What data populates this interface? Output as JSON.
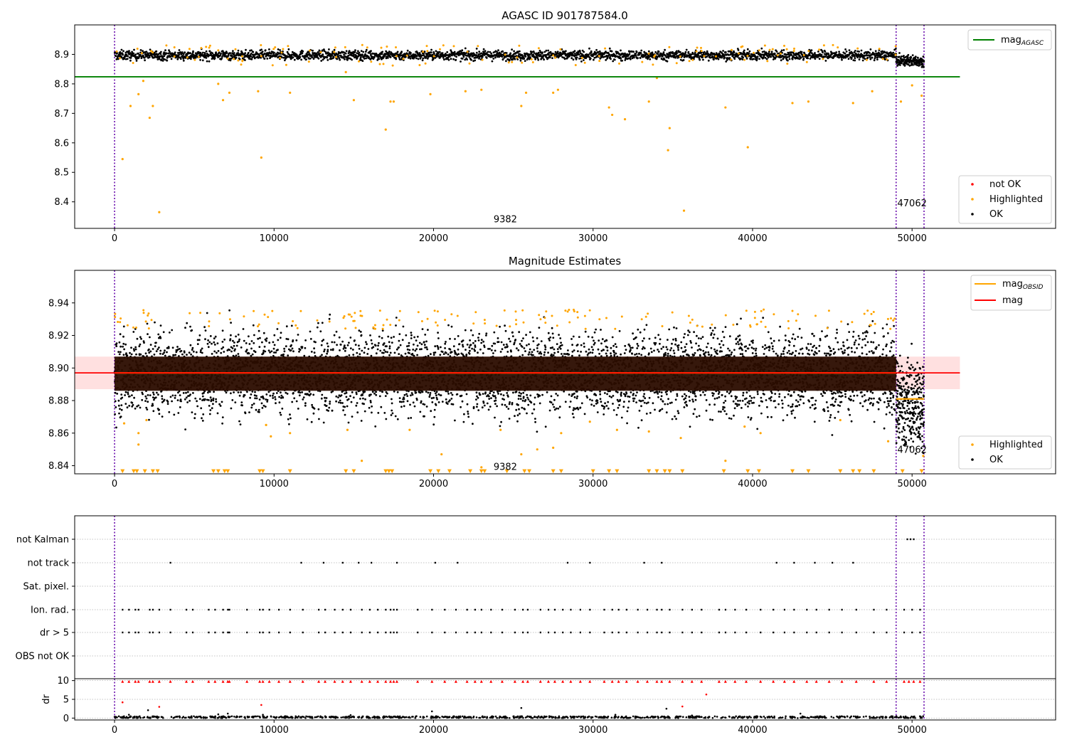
{
  "chart_data": [
    {
      "type": "scatter",
      "title": "AGASC ID 901787584.0",
      "xlim": [
        -2500,
        59000
      ],
      "ylim": [
        8.31,
        9.0
      ],
      "x_ticks": [
        0,
        10000,
        20000,
        30000,
        40000,
        50000
      ],
      "y_ticks": [
        8.4,
        8.5,
        8.6,
        8.7,
        8.8,
        8.9
      ],
      "y_tick_labels": [
        "8.4",
        "8.5",
        "8.6",
        "8.7",
        "8.8",
        "8.9"
      ],
      "grid": false,
      "vlines": [
        0,
        49000,
        50750
      ],
      "annotations": [
        {
          "text": "9382",
          "x": 24500,
          "y": 8.33
        },
        {
          "text": "47062",
          "x": 50000,
          "y": 8.385
        }
      ],
      "reference_line": {
        "name": "mag_AGASC",
        "label_main": "mag",
        "label_sub": "AGASC",
        "y": 8.824,
        "x_range": [
          -2500,
          53000
        ],
        "color": "#008000"
      },
      "legend_upper": {
        "position": "upper-right",
        "entries": [
          {
            "label": "mag",
            "sub": "AGASC",
            "color": "#008000",
            "kind": "line"
          }
        ]
      },
      "legend_lower": {
        "position": "lower-right",
        "entries": [
          {
            "label": "not OK",
            "color": "#ff0000",
            "kind": "dot"
          },
          {
            "label": "Highlighted",
            "color": "#ffa500",
            "kind": "dot"
          },
          {
            "label": "OK",
            "color": "#000000",
            "kind": "dot"
          }
        ]
      },
      "series": [
        {
          "name": "OK",
          "color": "#000000",
          "band": {
            "x_range": [
              0,
              49000
            ],
            "center": 8.897,
            "spread": 0.018
          },
          "tail_band": {
            "x_range": [
              49000,
              50750
            ],
            "center": 8.878,
            "spread": 0.02
          }
        },
        {
          "name": "Highlighted",
          "color": "#ffa500",
          "points": [
            [
              500,
              8.545
            ],
            [
              1000,
              8.725
            ],
            [
              1500,
              8.765
            ],
            [
              1800,
              8.81
            ],
            [
              2200,
              8.685
            ],
            [
              2400,
              8.725
            ],
            [
              2800,
              8.365
            ],
            [
              6500,
              8.8
            ],
            [
              6800,
              8.745
            ],
            [
              7200,
              8.77
            ],
            [
              9000,
              8.775
            ],
            [
              9200,
              8.55
            ],
            [
              11000,
              8.77
            ],
            [
              14500,
              8.84
            ],
            [
              15000,
              8.745
            ],
            [
              17000,
              8.645
            ],
            [
              17300,
              8.74
            ],
            [
              17500,
              8.74
            ],
            [
              19800,
              8.765
            ],
            [
              22000,
              8.775
            ],
            [
              23000,
              8.78
            ],
            [
              25500,
              8.725
            ],
            [
              25800,
              8.77
            ],
            [
              27500,
              8.77
            ],
            [
              27800,
              8.78
            ],
            [
              31000,
              8.72
            ],
            [
              31200,
              8.695
            ],
            [
              32000,
              8.68
            ],
            [
              33500,
              8.74
            ],
            [
              34000,
              8.82
            ],
            [
              34700,
              8.575
            ],
            [
              34800,
              8.65
            ],
            [
              35700,
              8.37
            ],
            [
              38300,
              8.72
            ],
            [
              39700,
              8.585
            ],
            [
              42500,
              8.735
            ],
            [
              43500,
              8.74
            ],
            [
              46300,
              8.735
            ],
            [
              47500,
              8.775
            ],
            [
              49300,
              8.74
            ],
            [
              50000,
              8.795
            ],
            [
              50600,
              8.76
            ]
          ]
        }
      ]
    },
    {
      "type": "scatter",
      "title": "Magnitude Estimates",
      "xlim": [
        -2500,
        59000
      ],
      "ylim": [
        8.835,
        8.96
      ],
      "x_ticks": [
        0,
        10000,
        20000,
        30000,
        40000,
        50000
      ],
      "y_ticks": [
        8.84,
        8.86,
        8.88,
        8.9,
        8.92,
        8.94
      ],
      "y_tick_labels": [
        "8.84",
        "8.86",
        "8.88",
        "8.90",
        "8.92",
        "8.94"
      ],
      "grid": false,
      "vlines": [
        0,
        49000,
        50750
      ],
      "annotations": [
        {
          "text": "9382",
          "x": 24500,
          "y": 8.8375
        },
        {
          "text": "47062",
          "x": 50000,
          "y": 8.848
        }
      ],
      "mag_line": {
        "y": 8.897,
        "x_range": [
          -2500,
          53000
        ],
        "color": "#ff0000",
        "band": [
          8.887,
          8.907
        ]
      },
      "mag_obsid_segments": [
        {
          "x_range": [
            0,
            49000
          ],
          "y": 8.897
        },
        {
          "x_range": [
            49000,
            50750
          ],
          "y": 8.881
        }
      ],
      "legend_upper": {
        "position": "upper-right",
        "entries": [
          {
            "label": "mag",
            "sub": "OBSID",
            "color": "#ffa500",
            "kind": "line"
          },
          {
            "label": "mag",
            "sub": "",
            "color": "#ff0000",
            "kind": "line"
          }
        ]
      },
      "legend_lower": {
        "position": "lower-right",
        "entries": [
          {
            "label": "Highlighted",
            "color": "#ffa500",
            "kind": "dot"
          },
          {
            "label": "OK",
            "color": "#000000",
            "kind": "dot"
          }
        ]
      },
      "series": [
        {
          "name": "OK",
          "color": "#000000",
          "band": {
            "x_range": [
              0,
              49000
            ],
            "center": 8.897,
            "spread": 0.028
          },
          "tail_band": {
            "x_range": [
              49000,
              50750
            ],
            "center": 8.878,
            "spread": 0.03
          }
        },
        {
          "name": "Highlighted",
          "color": "#ffa500",
          "points": [
            [
              600,
              8.866
            ],
            [
              1500,
              8.853
            ],
            [
              1500,
              8.86
            ],
            [
              2000,
              8.868
            ],
            [
              9500,
              8.865
            ],
            [
              9800,
              8.858
            ],
            [
              11000,
              8.86
            ],
            [
              14600,
              8.862
            ],
            [
              15500,
              8.843
            ],
            [
              18500,
              8.862
            ],
            [
              20500,
              8.847
            ],
            [
              23000,
              8.839
            ],
            [
              24200,
              8.862
            ],
            [
              25500,
              8.847
            ],
            [
              26500,
              8.85
            ],
            [
              27500,
              8.851
            ],
            [
              28000,
              8.86
            ],
            [
              29800,
              8.867
            ],
            [
              31500,
              8.862
            ],
            [
              33500,
              8.861
            ],
            [
              35500,
              8.857
            ],
            [
              38300,
              8.843
            ],
            [
              39500,
              8.864
            ],
            [
              40500,
              8.86
            ],
            [
              45500,
              8.868
            ],
            [
              48500,
              8.855
            ],
            [
              50700,
              8.846
            ]
          ]
        },
        {
          "name": "Highlighted limits",
          "color": "#ffa500",
          "marker": "triangle-down",
          "y": 8.8365,
          "x": [
            500,
            1200,
            1400,
            1900,
            2400,
            2700,
            6200,
            6500,
            6900,
            7100,
            9100,
            9300,
            11000,
            14500,
            15000,
            17000,
            17200,
            17400,
            19800,
            20300,
            21000,
            22300,
            23000,
            23200,
            24600,
            25700,
            26000,
            27500,
            28000,
            30000,
            31000,
            31500,
            33500,
            34000,
            34500,
            34800,
            35600,
            38200,
            39700,
            40400,
            42500,
            43500,
            45500,
            46300,
            46700,
            47600,
            49400,
            50600
          ]
        }
      ]
    },
    {
      "type": "scatter",
      "title": "",
      "xlim": [
        -2500,
        59000
      ],
      "grid": true,
      "vlines": [
        0,
        49000,
        50750
      ],
      "flag_rows": [
        "not Kalman",
        "not track",
        "Sat. pixel.",
        "Ion. rad.",
        "dr > 5",
        "OBS not OK"
      ],
      "flags": {
        "not Kalman": [
          49700,
          49900,
          50100
        ],
        "not track": [
          3500,
          11700,
          13100,
          14300,
          15300,
          16100,
          17700,
          20100,
          21500,
          28400,
          29800,
          33200,
          34300,
          41500,
          42600,
          43900,
          45000,
          46300
        ],
        "Sat. pixel.": [],
        "Ion. rad.": [
          500,
          900,
          1300,
          1500,
          2200,
          2400,
          2800,
          3500,
          4500,
          4900,
          5900,
          6300,
          6800,
          7100,
          7200,
          8300,
          9100,
          9300,
          9700,
          10300,
          11000,
          11800,
          12800,
          13200,
          13800,
          14300,
          14800,
          15500,
          16000,
          16500,
          17000,
          17300,
          17500,
          17700,
          19000,
          19900,
          20700,
          21400,
          22100,
          22600,
          23000,
          23600,
          24300,
          25100,
          25600,
          25900,
          26700,
          27200,
          27600,
          28100,
          28600,
          29200,
          29800,
          30700,
          31200,
          31600,
          32100,
          32800,
          33400,
          34000,
          34300,
          34800,
          35600,
          36200,
          36800,
          37900,
          38300,
          38900,
          39600,
          40500,
          41300,
          42000,
          42600,
          43400,
          44000,
          44800,
          45600,
          46500,
          47600,
          48400,
          49500,
          50000,
          50500
        ],
        "dr > 5": [
          500,
          900,
          1300,
          1500,
          2200,
          2400,
          2800,
          3500,
          4500,
          4900,
          5900,
          6300,
          6800,
          7100,
          7200,
          8300,
          9100,
          9300,
          9700,
          10300,
          11000,
          11800,
          12800,
          13200,
          13800,
          14300,
          14800,
          15500,
          16000,
          16500,
          17000,
          17300,
          17500,
          17700,
          19000,
          19900,
          20700,
          21400,
          22100,
          22600,
          23000,
          23600,
          24300,
          25100,
          25600,
          25900,
          26700,
          27200,
          27600,
          28100,
          28600,
          29200,
          29800,
          30700,
          31200,
          31600,
          32100,
          32800,
          33400,
          34000,
          34300,
          34800,
          35600,
          36200,
          36800,
          37900,
          38300,
          38900,
          39600,
          40500,
          41300,
          42000,
          42600,
          43400,
          44000,
          44800,
          45600,
          46500,
          47600,
          48400,
          49500,
          50000,
          50500
        ],
        "OBS not OK": []
      }
    },
    {
      "type": "scatter",
      "title": "",
      "xlim": [
        -2500,
        59000
      ],
      "ylim": [
        -0.5,
        10.5
      ],
      "xlabel": "",
      "ylabel": "dr",
      "x_ticks": [
        0,
        10000,
        20000,
        30000,
        40000,
        50000
      ],
      "y_ticks": [
        0,
        5,
        10
      ],
      "grid": true,
      "vlines": [
        0,
        49000,
        50750
      ],
      "series": [
        {
          "name": "OK",
          "color": "#000000",
          "baseline": {
            "x_range": [
              0,
              50750
            ],
            "y": 0.2
          },
          "points": [
            [
              900,
              0.9
            ],
            [
              2100,
              2.1
            ],
            [
              6500,
              1.0
            ],
            [
              7100,
              1.2
            ],
            [
              9300,
              0.9
            ],
            [
              14800,
              0.8
            ],
            [
              19900,
              1.8
            ],
            [
              25500,
              2.7
            ],
            [
              31400,
              0.9
            ],
            [
              34600,
              2.5
            ],
            [
              36200,
              0.7
            ],
            [
              43000,
              1.2
            ]
          ]
        },
        {
          "name": "not OK",
          "color": "#ff0000",
          "cap_y": 9.8,
          "cap_x": [
            500,
            900,
            1300,
            1500,
            2200,
            2400,
            2800,
            3500,
            4500,
            4900,
            5900,
            6300,
            6800,
            7100,
            7200,
            8300,
            9100,
            9300,
            9700,
            10300,
            11000,
            11800,
            12800,
            13200,
            13800,
            14300,
            14800,
            15500,
            16000,
            16500,
            17000,
            17300,
            17500,
            17700,
            19000,
            19900,
            20700,
            21400,
            22100,
            22600,
            23000,
            23600,
            24300,
            25100,
            25600,
            25900,
            26700,
            27200,
            27600,
            28100,
            28600,
            29200,
            29800,
            30700,
            31200,
            31600,
            32100,
            32800,
            33400,
            34000,
            34300,
            34800,
            35600,
            36200,
            36800,
            37900,
            38300,
            38900,
            39600,
            40500,
            41300,
            42000,
            42600,
            43400,
            44000,
            44800,
            45600,
            46500,
            47600,
            48400,
            49500,
            49800,
            50100,
            50500
          ],
          "points": [
            [
              500,
              4.2
            ],
            [
              2800,
              3.0
            ],
            [
              9200,
              3.5
            ],
            [
              35600,
              3.1
            ],
            [
              37100,
              6.3
            ]
          ]
        }
      ]
    }
  ]
}
